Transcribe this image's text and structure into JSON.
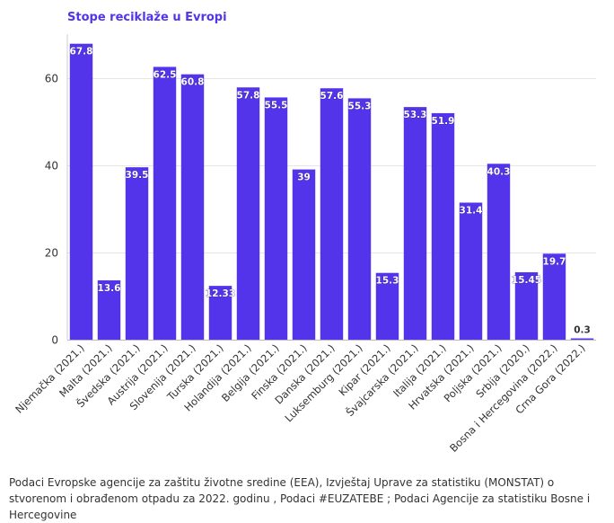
{
  "chart_data": {
    "type": "bar",
    "title": "Stope reciklaže u Evropi",
    "categories": [
      "Njemačka (2021.)",
      "Malta (2021.)",
      "Švedska (2021.)",
      "Austrija (2021.)",
      "Slovenija (2021.)",
      "Turska (2021.)",
      "Holandija (2021.)",
      "Belgija (2021.)",
      "Finska (2021.)",
      "Danska (2021.)",
      "Luksemburg (2021.)",
      "Kipar (2021.)",
      "Švajcarska (2021.)",
      "Italija (2021.)",
      "Hrvatska (2021.)",
      "Poljska (2021.)",
      "Srbija (2020.)",
      "Bosna i Hercegovina (2022.)",
      "Crna Gora (2022.)"
    ],
    "values": [
      67.8,
      13.6,
      39.5,
      62.5,
      60.8,
      12.33,
      57.8,
      55.5,
      39,
      57.6,
      55.3,
      15.3,
      53.3,
      51.9,
      31.4,
      40.3,
      15.45,
      19.7,
      0.3
    ],
    "value_labels": [
      "67.8",
      "13.6",
      "39.5",
      "62.5",
      "60.8",
      "12.33",
      "57.8",
      "55.5",
      "39",
      "57.6",
      "55.3",
      "15.3",
      "53.3",
      "51.9",
      "31.4",
      "40.3",
      "15.45",
      "19.7",
      "0.3"
    ],
    "ylim": [
      0,
      70
    ],
    "yticks": [
      0,
      20,
      40,
      60
    ],
    "ytick_labels": [
      "0",
      "20",
      "40",
      "60"
    ],
    "xlabel": "",
    "ylabel": "",
    "grid": true,
    "bar_color": "#5334ea",
    "title_color": "#5334ea"
  },
  "source": "Podaci Evropske agencije za zaštitu životne sredine (EEA), Izvještaj Uprave za statistiku (MONSTAT) o stvorenom i obrađenom otpadu za 2022. godinu , Podaci #EUZATEBE ; Podaci Agencije za statistiku Bosne i Hercegovine"
}
